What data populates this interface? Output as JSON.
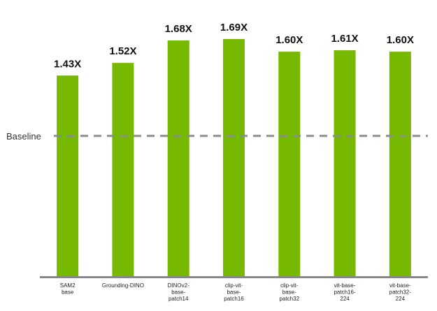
{
  "chart_data": {
    "type": "bar",
    "title": "",
    "xlabel": "",
    "ylabel": "",
    "categories": [
      "SAM2\nbase",
      "Grounding-DINO",
      "DINOv2-\nbase-\npatch14",
      "clip-vit-\nbase-\npatch16",
      "clip-vit-\nbase-\npatch32",
      "vit-base-\npatch16-\n224",
      "vit-base-\npatch32-\n224"
    ],
    "values": [
      1.43,
      1.52,
      1.68,
      1.69,
      1.6,
      1.61,
      1.6
    ],
    "value_labels": [
      "1.43X",
      "1.52X",
      "1.68X",
      "1.69X",
      "1.60X",
      "1.61X",
      "1.60X"
    ],
    "ylim": [
      0,
      1.9
    ],
    "grid": false,
    "reference_line": {
      "label": "Baseline",
      "value": 1.0,
      "style": "dashed"
    },
    "colors": {
      "bar": "#76b900",
      "axis": "#888888",
      "reference_line": "#8c8c8c"
    }
  }
}
